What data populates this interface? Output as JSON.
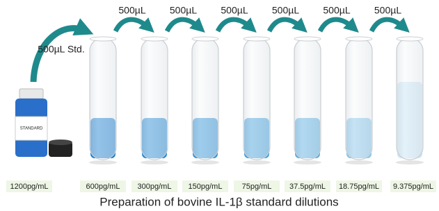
{
  "transfers": {
    "first": "500µL Std.",
    "steps": [
      "500µL",
      "500µL",
      "500µL",
      "500µL",
      "500µL",
      "500µL"
    ]
  },
  "bottle_label": "STANDARD",
  "concentrations": [
    "1200pg/mL",
    "600pg/mL",
    "300pg/mL",
    "150pg/mL",
    "75pg/mL",
    "37.5pg/mL",
    "18.75pg/mL",
    "9.375pg/mL"
  ],
  "caption": "Preparation of  bovine IL-1β standard dilutions"
}
